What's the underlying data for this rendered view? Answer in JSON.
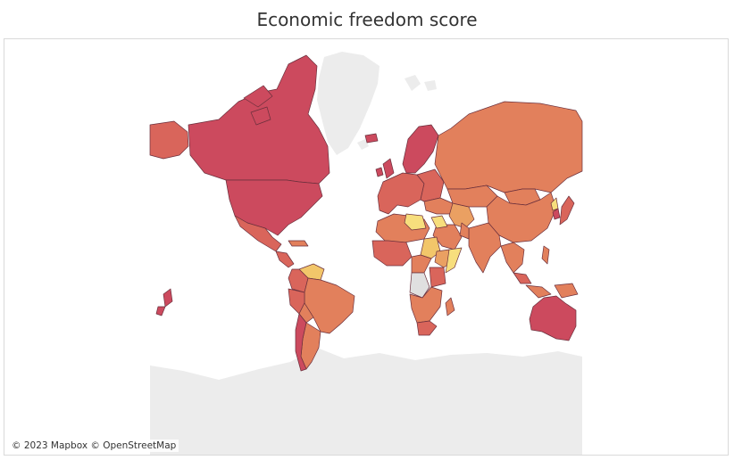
{
  "title": "Economic freedom score",
  "attribution": "© 2023 Mapbox © OpenStreetMap",
  "colors": {
    "high": "#cc4a5e",
    "mid_high": "#d9655b",
    "mid": "#e2805c",
    "mid_low": "#eaa062",
    "low": "#f2c66a",
    "lowest": "#f7de7d",
    "no_data": "#e0e0e0",
    "background_land": "#ececec",
    "border": "#6a2f3c"
  },
  "map": {
    "projection": "mercator",
    "basemap": "light",
    "color_scale": "sequential yellow-to-red"
  }
}
